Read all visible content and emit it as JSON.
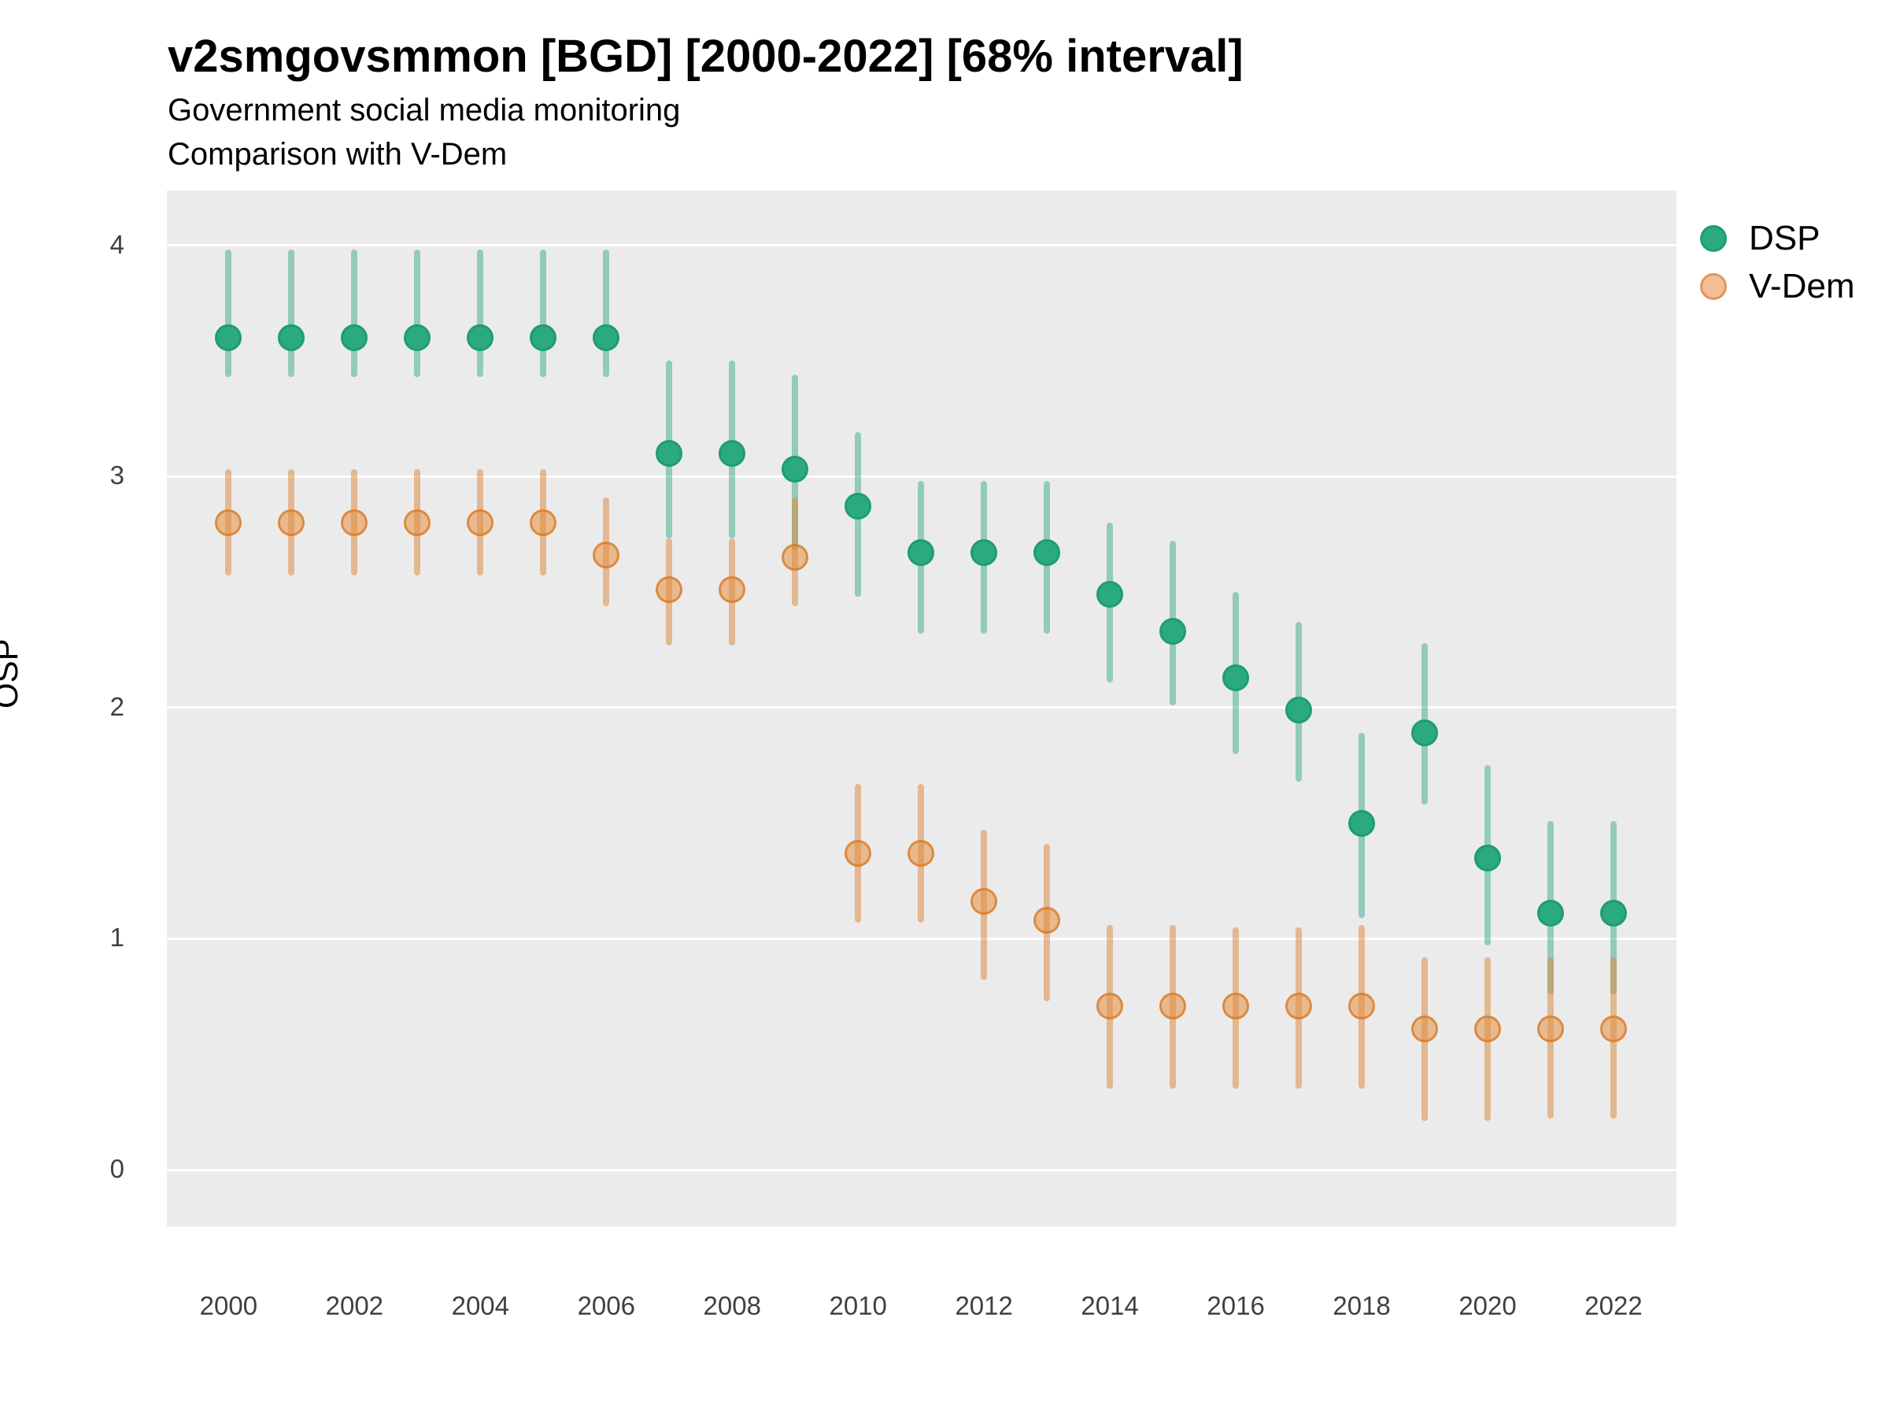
{
  "header": {
    "title": "v2smgovsmmon [BGD] [2000-2022] [68% interval]",
    "subtitle1": "Government social media monitoring",
    "subtitle2": "Comparison with V-Dem"
  },
  "y_axis": {
    "label": "OSP",
    "ticks": [
      4,
      3,
      2,
      1,
      0
    ]
  },
  "x_axis": {
    "ticks": [
      2000,
      2002,
      2004,
      2006,
      2008,
      2010,
      2012,
      2014,
      2016,
      2018,
      2020,
      2022
    ]
  },
  "legend": {
    "items": [
      {
        "label": "DSP",
        "marker_fill": "#2BA981",
        "marker_stroke": "#1E9C72"
      },
      {
        "label": "V-Dem",
        "marker_fill": "#F1BE95",
        "marker_stroke": "#E2945A"
      }
    ]
  },
  "colors": {
    "panel_bg": "#EBEBEB",
    "gridline": "#FFFFFF",
    "dsp_point_fill": "#2BA981",
    "dsp_point_stroke": "#1E9C72",
    "dsp_bar": "rgba(38,164,121,0.45)",
    "vdem_point_fill": "rgba(230,144,66,0.55)",
    "vdem_point_stroke": "rgba(215,118,32,0.70)",
    "vdem_bar": "rgba(221,136,62,0.52)"
  },
  "chart_data": {
    "type": "scatter",
    "title": "v2smgovsmmon [BGD] [2000-2022] [68% interval]",
    "xlabel": "",
    "ylabel": "OSP",
    "ylim": [
      -0.245,
      4.237
    ],
    "xlim": [
      1999.02,
      2023.0
    ],
    "grid": "horizontal-major-only",
    "legend_position": "right-top",
    "x": [
      2000,
      2001,
      2002,
      2003,
      2004,
      2005,
      2006,
      2007,
      2008,
      2009,
      2010,
      2011,
      2012,
      2013,
      2014,
      2015,
      2016,
      2017,
      2018,
      2019,
      2020,
      2021,
      2022
    ],
    "series": [
      {
        "name": "DSP",
        "est": [
          3.6,
          3.6,
          3.6,
          3.6,
          3.6,
          3.6,
          3.6,
          3.1,
          3.1,
          3.03,
          2.87,
          2.67,
          2.67,
          2.67,
          2.49,
          2.33,
          2.13,
          1.99,
          1.5,
          1.89,
          1.35,
          1.11,
          1.11
        ],
        "lo": [
          3.43,
          3.43,
          3.43,
          3.43,
          3.43,
          3.43,
          3.43,
          2.73,
          2.73,
          2.68,
          2.48,
          2.32,
          2.32,
          2.32,
          2.11,
          2.01,
          1.8,
          1.68,
          1.09,
          1.58,
          0.97,
          0.76,
          0.76
        ],
        "hi": [
          3.98,
          3.98,
          3.98,
          3.98,
          3.98,
          3.98,
          3.98,
          3.5,
          3.5,
          3.44,
          3.19,
          2.98,
          2.98,
          2.98,
          2.8,
          2.72,
          2.5,
          2.37,
          1.89,
          2.28,
          1.75,
          1.51,
          1.51
        ]
      },
      {
        "name": "V-Dem",
        "est": [
          2.8,
          2.8,
          2.8,
          2.8,
          2.8,
          2.8,
          2.66,
          2.51,
          2.51,
          2.65,
          1.37,
          1.37,
          1.16,
          1.08,
          0.71,
          0.71,
          0.71,
          0.71,
          0.71,
          0.61,
          0.61,
          0.61,
          0.61
        ],
        "lo": [
          2.57,
          2.57,
          2.57,
          2.57,
          2.57,
          2.57,
          2.44,
          2.27,
          2.27,
          2.44,
          1.07,
          1.07,
          0.82,
          0.73,
          0.35,
          0.35,
          0.35,
          0.35,
          0.35,
          0.21,
          0.21,
          0.22,
          0.22
        ],
        "hi": [
          3.03,
          3.03,
          3.03,
          3.03,
          3.03,
          3.03,
          2.91,
          2.73,
          2.73,
          2.91,
          1.67,
          1.67,
          1.47,
          1.41,
          1.06,
          1.06,
          1.05,
          1.05,
          1.06,
          0.92,
          0.92,
          0.92,
          0.92
        ]
      }
    ]
  }
}
